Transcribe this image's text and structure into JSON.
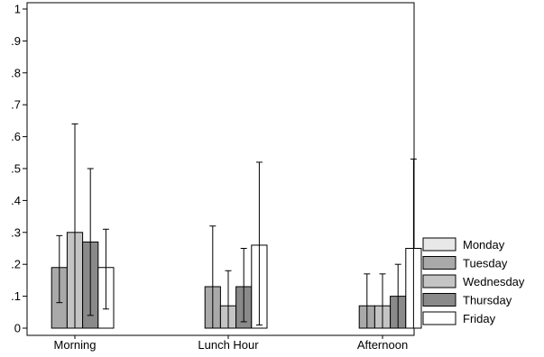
{
  "chart_data": {
    "type": "bar",
    "title": "",
    "xlabel": "",
    "ylabel": "",
    "ylim": [
      0,
      1
    ],
    "yticks": [
      0,
      0.1,
      0.2,
      0.3,
      0.4,
      0.5,
      0.6,
      0.7,
      0.8,
      0.9,
      1
    ],
    "ytick_labels": [
      "0",
      ".1",
      ".2",
      ".3",
      ".4",
      ".5",
      ".6",
      ".7",
      ".8",
      ".9",
      "1"
    ],
    "categories": [
      "Morning",
      "Lunch Hour",
      "Afternoon"
    ],
    "grid": false,
    "legend_position": "right",
    "error_bars": true,
    "series": [
      {
        "name": "Monday",
        "color": "#e8e8e8",
        "values": [
          null,
          null,
          0
        ],
        "err_low": [
          null,
          null,
          0
        ],
        "err_high": [
          null,
          null,
          0
        ]
      },
      {
        "name": "Tuesday",
        "color": "#a9a9a9",
        "values": [
          0.19,
          0.13,
          0.07
        ],
        "err_low": [
          0.08,
          0,
          0
        ],
        "err_high": [
          0.29,
          0.32,
          0.17
        ]
      },
      {
        "name": "Wednesday",
        "color": "#c4c4c4",
        "values": [
          0.3,
          0.07,
          0.07
        ],
        "err_low": [
          0,
          0,
          0
        ],
        "err_high": [
          0.64,
          0.18,
          0.17
        ]
      },
      {
        "name": "Thursday",
        "color": "#8a8a8a",
        "values": [
          0.27,
          0.13,
          0.1
        ],
        "err_low": [
          0.04,
          0.02,
          0
        ],
        "err_high": [
          0.5,
          0.25,
          0.2
        ]
      },
      {
        "name": "Friday",
        "color": "#ffffff",
        "values": [
          0.19,
          0.26,
          0.25
        ],
        "err_low": [
          0.06,
          0.01,
          0
        ],
        "err_high": [
          0.31,
          0.52,
          0.53
        ]
      }
    ]
  }
}
